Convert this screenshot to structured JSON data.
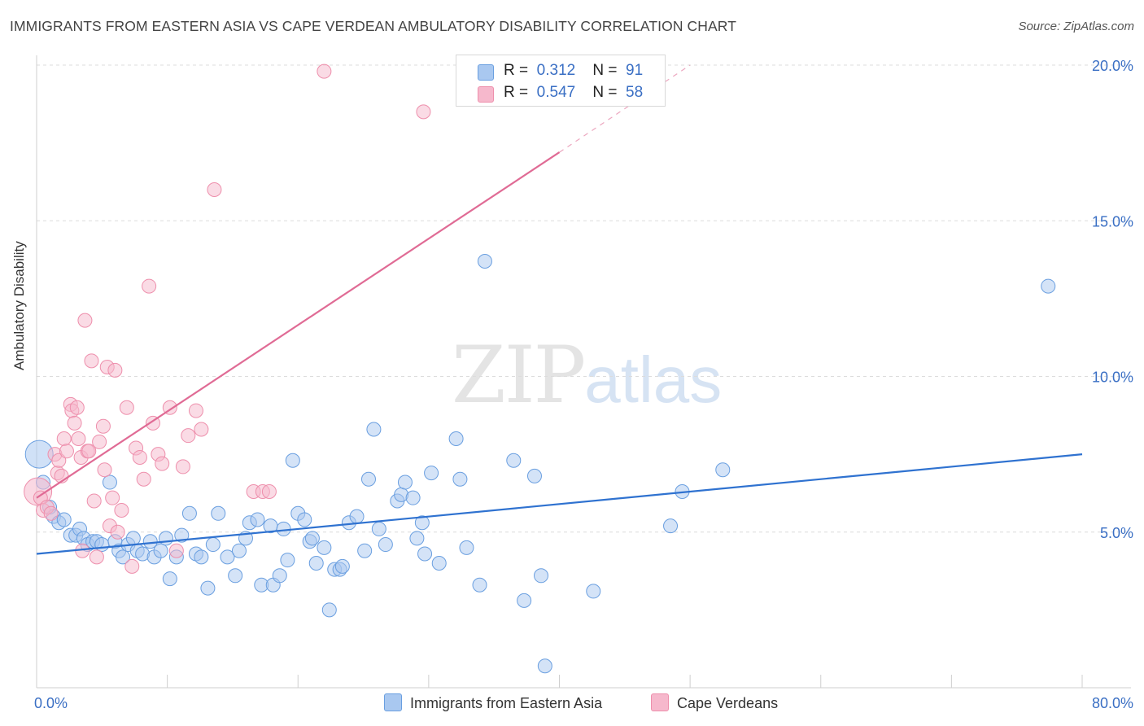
{
  "title": "IMMIGRANTS FROM EASTERN ASIA VS CAPE VERDEAN AMBULATORY DISABILITY CORRELATION CHART",
  "source": "Source: ZipAtlas.com",
  "watermark": {
    "zip": "ZIP",
    "atlas": "atlas"
  },
  "legend": {
    "r_label": "R =",
    "n_label": "N =",
    "rows": [
      {
        "r": "0.312",
        "n": "91",
        "color": "#a9c8f0"
      },
      {
        "r": "0.547",
        "n": "58",
        "color": "#f6b8cc"
      }
    ]
  },
  "bottom_legend": [
    {
      "label": "Immigrants from Eastern Asia",
      "color": "#a9c8f0"
    },
    {
      "label": "Cape Verdeans",
      "color": "#f6b8cc"
    }
  ],
  "chart_data": {
    "type": "scatter",
    "xlabel": "",
    "ylabel": "Ambulatory Disability",
    "xlim": [
      0,
      80
    ],
    "ylim": [
      0,
      20
    ],
    "x_tick_labels": {
      "min": "0.0%",
      "max": "80.0%"
    },
    "y_ticks": [
      5,
      10,
      15,
      20
    ],
    "y_tick_labels": [
      "5.0%",
      "10.0%",
      "15.0%",
      "20.0%"
    ],
    "grid": true,
    "series": [
      {
        "name": "Immigrants from Eastern Asia",
        "color": "#6a9fe0",
        "fill": "#a9c8f0",
        "trend": {
          "x": [
            0,
            80
          ],
          "y": [
            4.3,
            7.5
          ],
          "color": "#2f72d0"
        },
        "points": [
          [
            0.2,
            7.5
          ],
          [
            0.5,
            6.6
          ],
          [
            1,
            5.8
          ],
          [
            1.3,
            5.5
          ],
          [
            1.7,
            5.3
          ],
          [
            2.1,
            5.4
          ],
          [
            2.6,
            4.9
          ],
          [
            3,
            4.9
          ],
          [
            3.3,
            5.1
          ],
          [
            3.6,
            4.8
          ],
          [
            3.9,
            4.6
          ],
          [
            4.3,
            4.7
          ],
          [
            4.6,
            4.7
          ],
          [
            5,
            4.6
          ],
          [
            5.6,
            6.6
          ],
          [
            6,
            4.7
          ],
          [
            6.3,
            4.4
          ],
          [
            6.6,
            4.2
          ],
          [
            7,
            4.6
          ],
          [
            7.4,
            4.8
          ],
          [
            7.7,
            4.4
          ],
          [
            8.1,
            4.3
          ],
          [
            8.7,
            4.7
          ],
          [
            9,
            4.2
          ],
          [
            9.5,
            4.4
          ],
          [
            9.9,
            4.8
          ],
          [
            10.2,
            3.5
          ],
          [
            10.7,
            4.2
          ],
          [
            11.1,
            4.9
          ],
          [
            11.7,
            5.6
          ],
          [
            12.2,
            4.3
          ],
          [
            12.6,
            4.2
          ],
          [
            13.1,
            3.2
          ],
          [
            13.5,
            4.6
          ],
          [
            13.9,
            5.6
          ],
          [
            14.6,
            4.2
          ],
          [
            15.2,
            3.6
          ],
          [
            15.5,
            4.4
          ],
          [
            16,
            4.8
          ],
          [
            16.3,
            5.3
          ],
          [
            16.9,
            5.4
          ],
          [
            17.2,
            3.3
          ],
          [
            17.9,
            5.2
          ],
          [
            18.1,
            3.3
          ],
          [
            18.6,
            3.6
          ],
          [
            18.9,
            5.1
          ],
          [
            19.2,
            4.1
          ],
          [
            19.6,
            7.3
          ],
          [
            20,
            5.6
          ],
          [
            20.5,
            5.4
          ],
          [
            20.9,
            4.7
          ],
          [
            21.1,
            4.8
          ],
          [
            21.4,
            4.0
          ],
          [
            22,
            4.5
          ],
          [
            22.4,
            2.5
          ],
          [
            22.8,
            3.8
          ],
          [
            23.2,
            3.8
          ],
          [
            23.4,
            3.9
          ],
          [
            23.9,
            5.3
          ],
          [
            24.5,
            5.5
          ],
          [
            25.1,
            4.4
          ],
          [
            25.4,
            6.7
          ],
          [
            25.8,
            8.3
          ],
          [
            26.2,
            5.1
          ],
          [
            26.7,
            4.6
          ],
          [
            27.6,
            6.0
          ],
          [
            27.9,
            6.2
          ],
          [
            28.2,
            6.6
          ],
          [
            28.8,
            6.1
          ],
          [
            29.1,
            4.8
          ],
          [
            29.5,
            5.3
          ],
          [
            29.7,
            4.3
          ],
          [
            30.2,
            6.9
          ],
          [
            30.8,
            4.0
          ],
          [
            32.1,
            8.0
          ],
          [
            32.4,
            6.7
          ],
          [
            32.9,
            4.5
          ],
          [
            33.9,
            3.3
          ],
          [
            34.3,
            13.7
          ],
          [
            36.5,
            7.3
          ],
          [
            37.3,
            2.8
          ],
          [
            38.1,
            6.8
          ],
          [
            38.6,
            3.6
          ],
          [
            38.9,
            0.7
          ],
          [
            42.6,
            3.1
          ],
          [
            48.5,
            5.2
          ],
          [
            49.4,
            6.3
          ],
          [
            52.5,
            7.0
          ],
          [
            77.4,
            12.9
          ]
        ],
        "large_points": [
          0
        ]
      },
      {
        "name": "Cape Verdeans",
        "color": "#ee8fac",
        "fill": "#f6b8cc",
        "trend": {
          "x": [
            0,
            40
          ],
          "y": [
            6.1,
            17.2
          ],
          "dash_to": [
            50,
            20
          ],
          "color": "#e06b95"
        },
        "points": [
          [
            0.1,
            6.3
          ],
          [
            0.3,
            6.1
          ],
          [
            0.5,
            5.7
          ],
          [
            0.8,
            5.8
          ],
          [
            1.1,
            5.6
          ],
          [
            1.4,
            7.5
          ],
          [
            1.6,
            6.9
          ],
          [
            1.7,
            7.3
          ],
          [
            1.9,
            6.8
          ],
          [
            2.1,
            8.0
          ],
          [
            2.3,
            7.6
          ],
          [
            2.6,
            9.1
          ],
          [
            2.7,
            8.9
          ],
          [
            2.9,
            8.5
          ],
          [
            3.1,
            9.0
          ],
          [
            3.2,
            8.0
          ],
          [
            3.4,
            7.4
          ],
          [
            3.5,
            4.4
          ],
          [
            3.7,
            11.8
          ],
          [
            3.9,
            7.6
          ],
          [
            4,
            7.6
          ],
          [
            4.2,
            10.5
          ],
          [
            4.4,
            6.0
          ],
          [
            4.6,
            4.2
          ],
          [
            4.8,
            7.9
          ],
          [
            5.1,
            8.4
          ],
          [
            5.2,
            7.0
          ],
          [
            5.4,
            10.3
          ],
          [
            5.6,
            5.2
          ],
          [
            5.8,
            6.1
          ],
          [
            6,
            10.2
          ],
          [
            6.2,
            5.0
          ],
          [
            6.5,
            5.7
          ],
          [
            6.9,
            9.0
          ],
          [
            7.3,
            3.9
          ],
          [
            7.6,
            7.7
          ],
          [
            7.9,
            7.4
          ],
          [
            8.2,
            6.7
          ],
          [
            8.6,
            12.9
          ],
          [
            8.9,
            8.5
          ],
          [
            9.3,
            7.5
          ],
          [
            9.6,
            7.2
          ],
          [
            10.2,
            9.0
          ],
          [
            10.7,
            4.4
          ],
          [
            11.2,
            7.1
          ],
          [
            11.6,
            8.1
          ],
          [
            12.2,
            8.9
          ],
          [
            12.6,
            8.3
          ],
          [
            13.6,
            16.0
          ],
          [
            16.6,
            6.3
          ],
          [
            17.3,
            6.3
          ],
          [
            17.8,
            6.3
          ],
          [
            22.0,
            19.8
          ],
          [
            29.6,
            18.5
          ]
        ],
        "large_points": [
          0
        ]
      }
    ]
  }
}
